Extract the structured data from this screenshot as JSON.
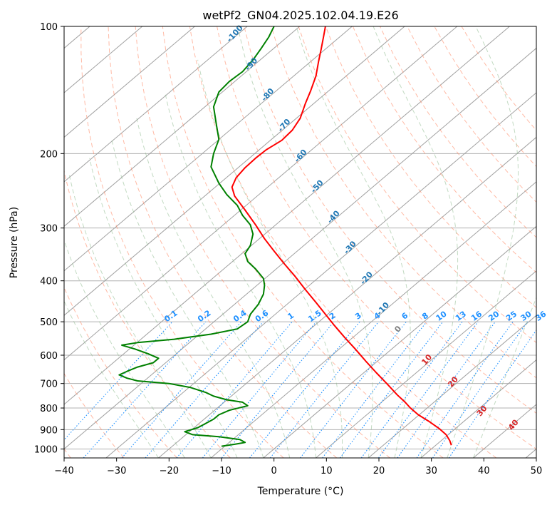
{
  "chart_data": {
    "type": "line",
    "title": "wetPf2_GN04.2025.102.04.19.E26",
    "xlabel": "Temperature (°C)",
    "ylabel": "Pressure (hPa)",
    "xlim": [
      -40,
      50
    ],
    "ylim": [
      1050,
      100
    ],
    "y_scale": "log",
    "grid": true,
    "x_ticks": [
      "−40",
      "−30",
      "−20",
      "−10",
      "0",
      "10",
      "20",
      "30",
      "40",
      "50"
    ],
    "y_ticks": [
      "100",
      "200",
      "300",
      "400",
      "500",
      "600",
      "700",
      "800",
      "900",
      "1000"
    ],
    "series": [
      {
        "color": "#ff0000",
        "points": [
          [
            33.8,
            980
          ],
          [
            33.5,
            955
          ],
          [
            32.8,
            925
          ],
          [
            31.5,
            895
          ],
          [
            29.5,
            860
          ],
          [
            27.5,
            830
          ],
          [
            26.0,
            800
          ],
          [
            25.0,
            775
          ],
          [
            23.5,
            745
          ],
          [
            21.5,
            700
          ],
          [
            19.5,
            660
          ],
          [
            17.5,
            620
          ],
          [
            15.5,
            580
          ],
          [
            13.5,
            545
          ],
          [
            11.5,
            510
          ],
          [
            9.8,
            480
          ],
          [
            8.0,
            450
          ],
          [
            6.0,
            420
          ],
          [
            4.0,
            390
          ],
          [
            2.0,
            365
          ],
          [
            0.0,
            340
          ],
          [
            -1.8,
            318
          ],
          [
            -3.5,
            295
          ],
          [
            -5.5,
            272
          ],
          [
            -7.5,
            252
          ],
          [
            -8.0,
            240
          ],
          [
            -7.2,
            228
          ],
          [
            -5.5,
            216
          ],
          [
            -3.5,
            205
          ],
          [
            -1.5,
            196
          ],
          [
            1.5,
            186
          ],
          [
            3.5,
            176
          ],
          [
            5.0,
            165
          ],
          [
            6.0,
            152
          ],
          [
            7.0,
            142
          ],
          [
            8.0,
            131
          ],
          [
            8.5,
            121
          ],
          [
            9.0,
            113
          ],
          [
            9.5,
            105
          ],
          [
            9.8,
            100
          ]
        ]
      },
      {
        "color": "#008000",
        "points": [
          [
            -10.0,
            985
          ],
          [
            -7.5,
            975
          ],
          [
            -5.5,
            965
          ],
          [
            -6.5,
            950
          ],
          [
            -10.5,
            935
          ],
          [
            -15.5,
            925
          ],
          [
            -17.0,
            910
          ],
          [
            -14.5,
            890
          ],
          [
            -13.0,
            870
          ],
          [
            -11.5,
            850
          ],
          [
            -10.5,
            830
          ],
          [
            -8.5,
            810
          ],
          [
            -5.0,
            790
          ],
          [
            -6.0,
            775
          ],
          [
            -9.0,
            765
          ],
          [
            -11.5,
            750
          ],
          [
            -13.0,
            735
          ],
          [
            -16.0,
            715
          ],
          [
            -20.0,
            700
          ],
          [
            -26.0,
            690
          ],
          [
            -28.0,
            680
          ],
          [
            -29.5,
            668
          ],
          [
            -28.0,
            655
          ],
          [
            -26.0,
            640
          ],
          [
            -23.0,
            625
          ],
          [
            -22.0,
            610
          ],
          [
            -24.0,
            595
          ],
          [
            -26.5,
            580
          ],
          [
            -29.0,
            568
          ],
          [
            -26.0,
            560
          ],
          [
            -19.0,
            550
          ],
          [
            -12.0,
            535
          ],
          [
            -7.0,
            520
          ],
          [
            -5.0,
            500
          ],
          [
            -4.5,
            480
          ],
          [
            -3.0,
            455
          ],
          [
            -2.0,
            430
          ],
          [
            -1.8,
            410
          ],
          [
            -2.0,
            395
          ],
          [
            -3.5,
            375
          ],
          [
            -5.0,
            360
          ],
          [
            -5.5,
            345
          ],
          [
            -4.5,
            330
          ],
          [
            -4.0,
            310
          ],
          [
            -4.5,
            295
          ],
          [
            -6.0,
            280
          ],
          [
            -7.0,
            265
          ],
          [
            -9.0,
            250
          ],
          [
            -10.5,
            235
          ],
          [
            -12.0,
            215
          ],
          [
            -11.5,
            200
          ],
          [
            -10.5,
            185
          ],
          [
            -11.0,
            170
          ],
          [
            -11.5,
            155
          ],
          [
            -10.5,
            143
          ],
          [
            -8.5,
            135
          ],
          [
            -6.0,
            128
          ],
          [
            -4.0,
            120
          ],
          [
            -2.5,
            113
          ],
          [
            -1.0,
            106
          ],
          [
            0.0,
            100
          ]
        ]
      }
    ],
    "isotherm_labels": [
      "-100",
      "-90",
      "-80",
      "-70",
      "-60",
      "-50",
      "-40",
      "-30",
      "-20",
      "-10"
    ],
    "mixing_ratio_labels": [
      "0.1",
      "0.2",
      "0.4",
      "0.6",
      "1",
      "1.5",
      "2",
      "3",
      "4",
      "6",
      "8",
      "10",
      "13",
      "16",
      "20",
      "25",
      "30",
      "36"
    ],
    "theta_e_labels": [
      "0",
      "10",
      "20",
      "30",
      "40"
    ],
    "colors": {
      "temperature": "#ff0000",
      "dewpoint": "#008000",
      "isotherm": "#a0a0a0",
      "isotherm_label": "#1f77b4",
      "dry_adiabat": "#ff8c69",
      "moist_adiabat": "#8fbc8f",
      "mixing_ratio": "#1e90ff",
      "theta_e_label": "#d62728"
    }
  }
}
